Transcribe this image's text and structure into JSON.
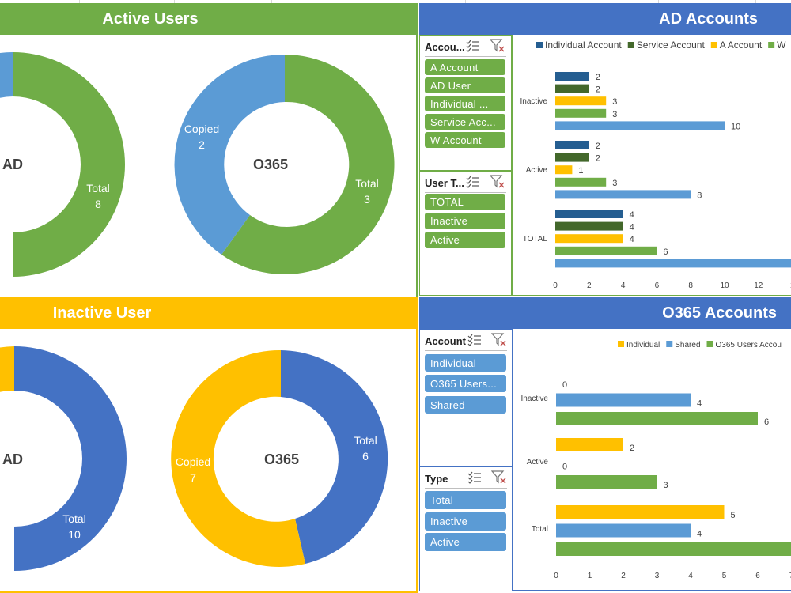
{
  "colors": {
    "green": "#70ad47",
    "blue": "#4472c4",
    "light_blue": "#5b9bd5",
    "gold": "#ffc000",
    "dark_blue": "#255e91",
    "dark_green": "#43682b"
  },
  "banners": {
    "active_users": "Active Users",
    "ad_accounts": "AD Accounts",
    "inactive_user": "Inactive User",
    "o365_accounts": "O365 Accounts"
  },
  "donuts": {
    "active_ad": {
      "center": "AD",
      "total_label": "Total",
      "total_value": "8"
    },
    "active_o365": {
      "center": "O365",
      "copied_label": "Copied",
      "copied_value": "2",
      "total_label": "Total",
      "total_value": "3"
    },
    "inactive_ad": {
      "center": "AD",
      "total_label": "Total",
      "total_value": "10"
    },
    "inactive_o365": {
      "center": "O365",
      "copied_label": "Copied",
      "copied_value": "7",
      "total_label": "Total",
      "total_value": "6"
    }
  },
  "slicers": {
    "ad_account": {
      "title": "Accou...",
      "items": [
        "A Account",
        "AD User",
        "Individual ...",
        "Service Acc...",
        "W Account"
      ]
    },
    "ad_user_type": {
      "title": "User T...",
      "items": [
        "TOTAL",
        "Inactive",
        "Active"
      ]
    },
    "o365_account": {
      "title": "Account",
      "items": [
        "Individual",
        "O365 Users...",
        "Shared"
      ]
    },
    "o365_type": {
      "title": "Type",
      "items": [
        "Total",
        "Inactive",
        "Active"
      ]
    }
  },
  "chart_data": [
    {
      "type": "bar",
      "orientation": "horizontal",
      "categories": [
        "Inactive",
        "Active",
        "TOTAL"
      ],
      "legend": [
        "Individual Account",
        "Service Account",
        "A Account",
        "W"
      ],
      "legend_position": "top",
      "series": [
        {
          "name": "Individual Account",
          "color": "#255e91",
          "values": [
            2,
            2,
            4
          ]
        },
        {
          "name": "Service Account",
          "color": "#43682b",
          "values": [
            2,
            2,
            4
          ]
        },
        {
          "name": "A Account",
          "color": "#ffc000",
          "values": [
            3,
            1,
            4
          ]
        },
        {
          "name": "W",
          "color": "#70ad47",
          "values": [
            3,
            3,
            6
          ]
        },
        {
          "color": "#5b9bd5",
          "values": [
            10,
            8,
            14
          ]
        }
      ],
      "data_labels": [
        [
          "2",
          "2",
          "3",
          "3",
          "10"
        ],
        [
          "2",
          "2",
          "1",
          "3",
          "8"
        ],
        [
          "4",
          "4",
          "4",
          "6",
          ""
        ]
      ],
      "x_ticks": [
        "0",
        "2",
        "4",
        "6",
        "8",
        "10",
        "12",
        "1"
      ],
      "xlim": [
        0,
        14
      ]
    },
    {
      "type": "bar",
      "orientation": "horizontal",
      "categories": [
        "Inactive",
        "Active",
        "Total"
      ],
      "legend": [
        "Individual",
        "Shared",
        "O365 Users Accou"
      ],
      "legend_position": "top",
      "series": [
        {
          "name": "Individual",
          "color": "#ffc000",
          "values": [
            0,
            2,
            5
          ]
        },
        {
          "name": "Shared",
          "color": "#5b9bd5",
          "values": [
            4,
            0,
            4
          ]
        },
        {
          "name": "O365 Users Accou",
          "color": "#70ad47",
          "values": [
            6,
            3,
            7.2
          ]
        }
      ],
      "data_labels": [
        [
          "0",
          "4",
          "6"
        ],
        [
          "2",
          "0",
          "3"
        ],
        [
          "5",
          "4",
          ""
        ]
      ],
      "x_ticks": [
        "0",
        "1",
        "2",
        "3",
        "4",
        "5",
        "6",
        "7"
      ],
      "xlim": [
        0,
        7
      ]
    }
  ]
}
